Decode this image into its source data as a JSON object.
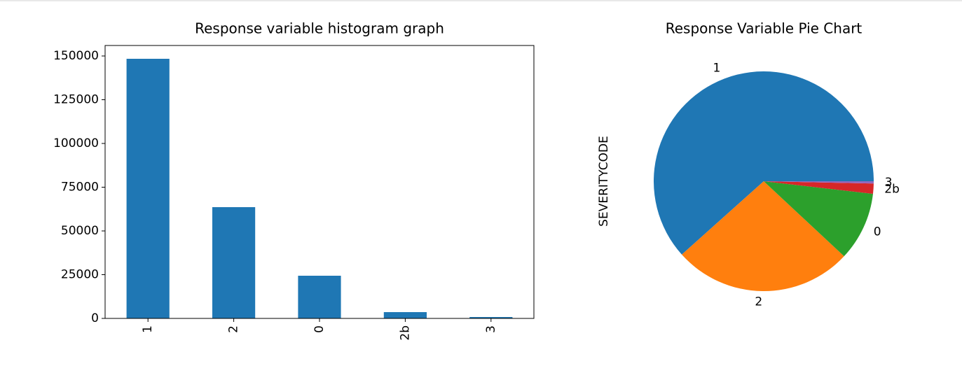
{
  "chart_data": [
    {
      "type": "bar",
      "title": "Response variable histogram graph",
      "categories": [
        "1",
        "2",
        "0",
        "2b",
        "3"
      ],
      "values": [
        148400,
        63600,
        24400,
        3600,
        800
      ],
      "color": "#1f77b4",
      "ylim": [
        0,
        156000
      ],
      "yticks": [
        0,
        25000,
        50000,
        75000,
        100000,
        125000,
        150000
      ]
    },
    {
      "type": "pie",
      "title": "Response Variable Pie Chart",
      "ylabel": "SEVERITYCODE",
      "categories": [
        "1",
        "2",
        "0",
        "2b",
        "3"
      ],
      "values": [
        148400,
        63600,
        24400,
        3600,
        800
      ],
      "colors": [
        "#1f77b4",
        "#ff7f0e",
        "#2ca02c",
        "#d62728",
        "#9467bd"
      ]
    }
  ]
}
